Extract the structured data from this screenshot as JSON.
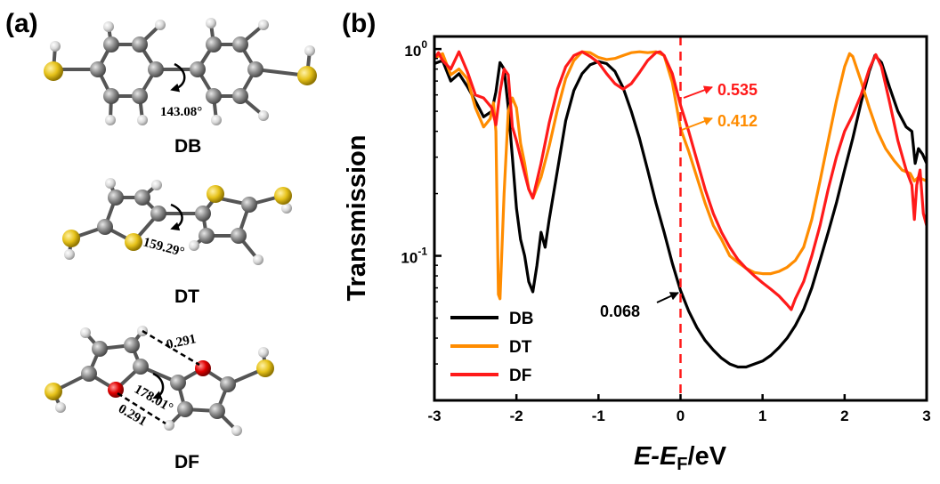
{
  "panel_a": {
    "label": "(a)",
    "molecules": [
      {
        "name": "DB",
        "angle": "143.08°"
      },
      {
        "name": "DT",
        "angle": "159.29°"
      },
      {
        "name": "DF",
        "angle": "178.01°",
        "dist_top": "0.291",
        "dist_bottom": "0.291"
      }
    ]
  },
  "panel_b": {
    "label": "(b)"
  },
  "colors": {
    "DB": "#000000",
    "DT": "#FF8C00",
    "DF": "#FF1A1A",
    "fermi": "#FF1A1A"
  },
  "chart_data": {
    "type": "line",
    "xlabel_main": "E-E",
    "xlabel_sub": "F",
    "xlabel_unit": "/eV",
    "ylabel": "Transmission",
    "xlim": [
      -3,
      3
    ],
    "ylim": [
      0.02,
      1.15
    ],
    "yscale": "log",
    "xticks": [
      -3,
      -2,
      -1,
      0,
      1,
      2,
      3
    ],
    "xtick_labels": [
      "-3",
      "-2",
      "-1",
      "0",
      "1",
      "2",
      "3"
    ],
    "yticks": [
      {
        "base": "10",
        "exp": "0",
        "value": 1
      },
      {
        "base": "10",
        "exp": "-1",
        "value": 0.1
      }
    ],
    "fermi_level": 0,
    "legend": [
      "DB",
      "DT",
      "DF"
    ],
    "annotations": [
      {
        "text": "0.535",
        "series": "DF",
        "x": 0,
        "y": 0.535
      },
      {
        "text": "0.412",
        "series": "DT",
        "x": 0,
        "y": 0.412
      },
      {
        "text": "0.068",
        "series": "DB",
        "x": 0,
        "y": 0.068
      }
    ],
    "series": [
      {
        "name": "DB",
        "points": [
          [
            -3,
            0.85
          ],
          [
            -2.9,
            0.88
          ],
          [
            -2.8,
            0.7
          ],
          [
            -2.7,
            0.76
          ],
          [
            -2.6,
            0.66
          ],
          [
            -2.5,
            0.56
          ],
          [
            -2.4,
            0.47
          ],
          [
            -2.3,
            0.5
          ],
          [
            -2.25,
            0.62
          ],
          [
            -2.2,
            0.86
          ],
          [
            -2.15,
            0.8
          ],
          [
            -2.1,
            0.52
          ],
          [
            -2.05,
            0.3
          ],
          [
            -2.0,
            0.17
          ],
          [
            -1.95,
            0.12
          ],
          [
            -1.9,
            0.1
          ],
          [
            -1.85,
            0.075
          ],
          [
            -1.8,
            0.067
          ],
          [
            -1.75,
            0.09
          ],
          [
            -1.7,
            0.13
          ],
          [
            -1.65,
            0.11
          ],
          [
            -1.6,
            0.15
          ],
          [
            -1.5,
            0.26
          ],
          [
            -1.4,
            0.45
          ],
          [
            -1.3,
            0.63
          ],
          [
            -1.2,
            0.76
          ],
          [
            -1.1,
            0.84
          ],
          [
            -1.0,
            0.87
          ],
          [
            -0.9,
            0.85
          ],
          [
            -0.8,
            0.78
          ],
          [
            -0.7,
            0.65
          ],
          [
            -0.6,
            0.5
          ],
          [
            -0.5,
            0.37
          ],
          [
            -0.4,
            0.26
          ],
          [
            -0.3,
            0.18
          ],
          [
            -0.2,
            0.13
          ],
          [
            -0.1,
            0.092
          ],
          [
            0,
            0.068
          ],
          [
            0.1,
            0.054
          ],
          [
            0.2,
            0.045
          ],
          [
            0.3,
            0.039
          ],
          [
            0.4,
            0.035
          ],
          [
            0.5,
            0.032
          ],
          [
            0.6,
            0.03
          ],
          [
            0.7,
            0.029
          ],
          [
            0.8,
            0.029
          ],
          [
            0.9,
            0.03
          ],
          [
            1.0,
            0.031
          ],
          [
            1.1,
            0.033
          ],
          [
            1.2,
            0.036
          ],
          [
            1.3,
            0.04
          ],
          [
            1.4,
            0.046
          ],
          [
            1.5,
            0.055
          ],
          [
            1.6,
            0.07
          ],
          [
            1.7,
            0.095
          ],
          [
            1.8,
            0.13
          ],
          [
            1.9,
            0.18
          ],
          [
            2.0,
            0.26
          ],
          [
            2.1,
            0.37
          ],
          [
            2.2,
            0.55
          ],
          [
            2.3,
            0.78
          ],
          [
            2.37,
            0.93
          ],
          [
            2.45,
            0.86
          ],
          [
            2.55,
            0.65
          ],
          [
            2.65,
            0.5
          ],
          [
            2.75,
            0.42
          ],
          [
            2.82,
            0.4
          ],
          [
            2.86,
            0.28
          ],
          [
            2.9,
            0.33
          ],
          [
            2.95,
            0.31
          ],
          [
            3.0,
            0.28
          ]
        ]
      },
      {
        "name": "DT",
        "points": [
          [
            -3,
            0.9
          ],
          [
            -2.9,
            0.95
          ],
          [
            -2.8,
            0.75
          ],
          [
            -2.7,
            0.8
          ],
          [
            -2.6,
            0.72
          ],
          [
            -2.5,
            0.52
          ],
          [
            -2.4,
            0.42
          ],
          [
            -2.32,
            0.46
          ],
          [
            -2.28,
            0.55
          ],
          [
            -2.25,
            0.4
          ],
          [
            -2.22,
            0.065
          ],
          [
            -2.2,
            0.062
          ],
          [
            -2.15,
            0.2
          ],
          [
            -2.1,
            0.5
          ],
          [
            -2.05,
            0.58
          ],
          [
            -2.0,
            0.52
          ],
          [
            -1.95,
            0.35
          ],
          [
            -1.9,
            0.28
          ],
          [
            -1.85,
            0.21
          ],
          [
            -1.8,
            0.19
          ],
          [
            -1.7,
            0.24
          ],
          [
            -1.6,
            0.34
          ],
          [
            -1.5,
            0.51
          ],
          [
            -1.4,
            0.72
          ],
          [
            -1.3,
            0.88
          ],
          [
            -1.2,
            0.97
          ],
          [
            -1.1,
            0.96
          ],
          [
            -1.0,
            0.91
          ],
          [
            -0.9,
            0.89
          ],
          [
            -0.8,
            0.9
          ],
          [
            -0.7,
            0.93
          ],
          [
            -0.6,
            0.96
          ],
          [
            -0.5,
            0.97
          ],
          [
            -0.4,
            0.96
          ],
          [
            -0.3,
            0.97
          ],
          [
            -0.2,
            0.93
          ],
          [
            -0.1,
            0.69
          ],
          [
            0,
            0.412
          ],
          [
            0.1,
            0.32
          ],
          [
            0.2,
            0.24
          ],
          [
            0.3,
            0.18
          ],
          [
            0.4,
            0.14
          ],
          [
            0.5,
            0.12
          ],
          [
            0.6,
            0.1
          ],
          [
            0.7,
            0.093
          ],
          [
            0.8,
            0.087
          ],
          [
            0.9,
            0.083
          ],
          [
            1.0,
            0.082
          ],
          [
            1.1,
            0.082
          ],
          [
            1.2,
            0.084
          ],
          [
            1.3,
            0.088
          ],
          [
            1.4,
            0.095
          ],
          [
            1.5,
            0.11
          ],
          [
            1.6,
            0.15
          ],
          [
            1.7,
            0.23
          ],
          [
            1.8,
            0.36
          ],
          [
            1.9,
            0.56
          ],
          [
            2.0,
            0.82
          ],
          [
            2.06,
            0.95
          ],
          [
            2.1,
            0.92
          ],
          [
            2.2,
            0.7
          ],
          [
            2.3,
            0.52
          ],
          [
            2.4,
            0.4
          ],
          [
            2.5,
            0.33
          ],
          [
            2.6,
            0.29
          ],
          [
            2.7,
            0.26
          ],
          [
            2.8,
            0.25
          ],
          [
            2.85,
            0.23
          ],
          [
            2.9,
            0.24
          ],
          [
            3.0,
            0.23
          ]
        ]
      },
      {
        "name": "DF",
        "points": [
          [
            -3,
            0.9
          ],
          [
            -2.95,
            0.96
          ],
          [
            -2.9,
            0.88
          ],
          [
            -2.8,
            0.8
          ],
          [
            -2.7,
            0.97
          ],
          [
            -2.6,
            0.78
          ],
          [
            -2.5,
            0.6
          ],
          [
            -2.4,
            0.58
          ],
          [
            -2.3,
            0.52
          ],
          [
            -2.25,
            0.43
          ],
          [
            -2.2,
            0.62
          ],
          [
            -2.15,
            0.8
          ],
          [
            -2.1,
            0.75
          ],
          [
            -2.05,
            0.42
          ],
          [
            -2.0,
            0.36
          ],
          [
            -1.95,
            0.3
          ],
          [
            -1.9,
            0.25
          ],
          [
            -1.85,
            0.21
          ],
          [
            -1.8,
            0.19
          ],
          [
            -1.7,
            0.28
          ],
          [
            -1.6,
            0.44
          ],
          [
            -1.5,
            0.64
          ],
          [
            -1.4,
            0.82
          ],
          [
            -1.3,
            0.93
          ],
          [
            -1.2,
            0.97
          ],
          [
            -1.1,
            0.92
          ],
          [
            -1.0,
            0.86
          ],
          [
            -0.9,
            0.76
          ],
          [
            -0.8,
            0.68
          ],
          [
            -0.7,
            0.64
          ],
          [
            -0.6,
            0.68
          ],
          [
            -0.5,
            0.77
          ],
          [
            -0.4,
            0.88
          ],
          [
            -0.3,
            0.96
          ],
          [
            -0.25,
            0.97
          ],
          [
            -0.2,
            0.93
          ],
          [
            -0.1,
            0.76
          ],
          [
            0,
            0.535
          ],
          [
            0.1,
            0.4
          ],
          [
            0.2,
            0.29
          ],
          [
            0.3,
            0.21
          ],
          [
            0.4,
            0.16
          ],
          [
            0.5,
            0.13
          ],
          [
            0.6,
            0.11
          ],
          [
            0.7,
            0.096
          ],
          [
            0.8,
            0.087
          ],
          [
            0.9,
            0.08
          ],
          [
            1.0,
            0.074
          ],
          [
            1.1,
            0.069
          ],
          [
            1.2,
            0.064
          ],
          [
            1.3,
            0.058
          ],
          [
            1.35,
            0.055
          ],
          [
            1.4,
            0.062
          ],
          [
            1.5,
            0.075
          ],
          [
            1.6,
            0.1
          ],
          [
            1.7,
            0.14
          ],
          [
            1.8,
            0.21
          ],
          [
            1.9,
            0.3
          ],
          [
            2.0,
            0.4
          ],
          [
            2.1,
            0.48
          ],
          [
            2.2,
            0.6
          ],
          [
            2.3,
            0.8
          ],
          [
            2.38,
            0.94
          ],
          [
            2.45,
            0.82
          ],
          [
            2.55,
            0.55
          ],
          [
            2.65,
            0.36
          ],
          [
            2.75,
            0.26
          ],
          [
            2.82,
            0.22
          ],
          [
            2.85,
            0.15
          ],
          [
            2.88,
            0.22
          ],
          [
            2.92,
            0.26
          ],
          [
            2.96,
            0.16
          ],
          [
            3.0,
            0.14
          ]
        ]
      }
    ]
  }
}
